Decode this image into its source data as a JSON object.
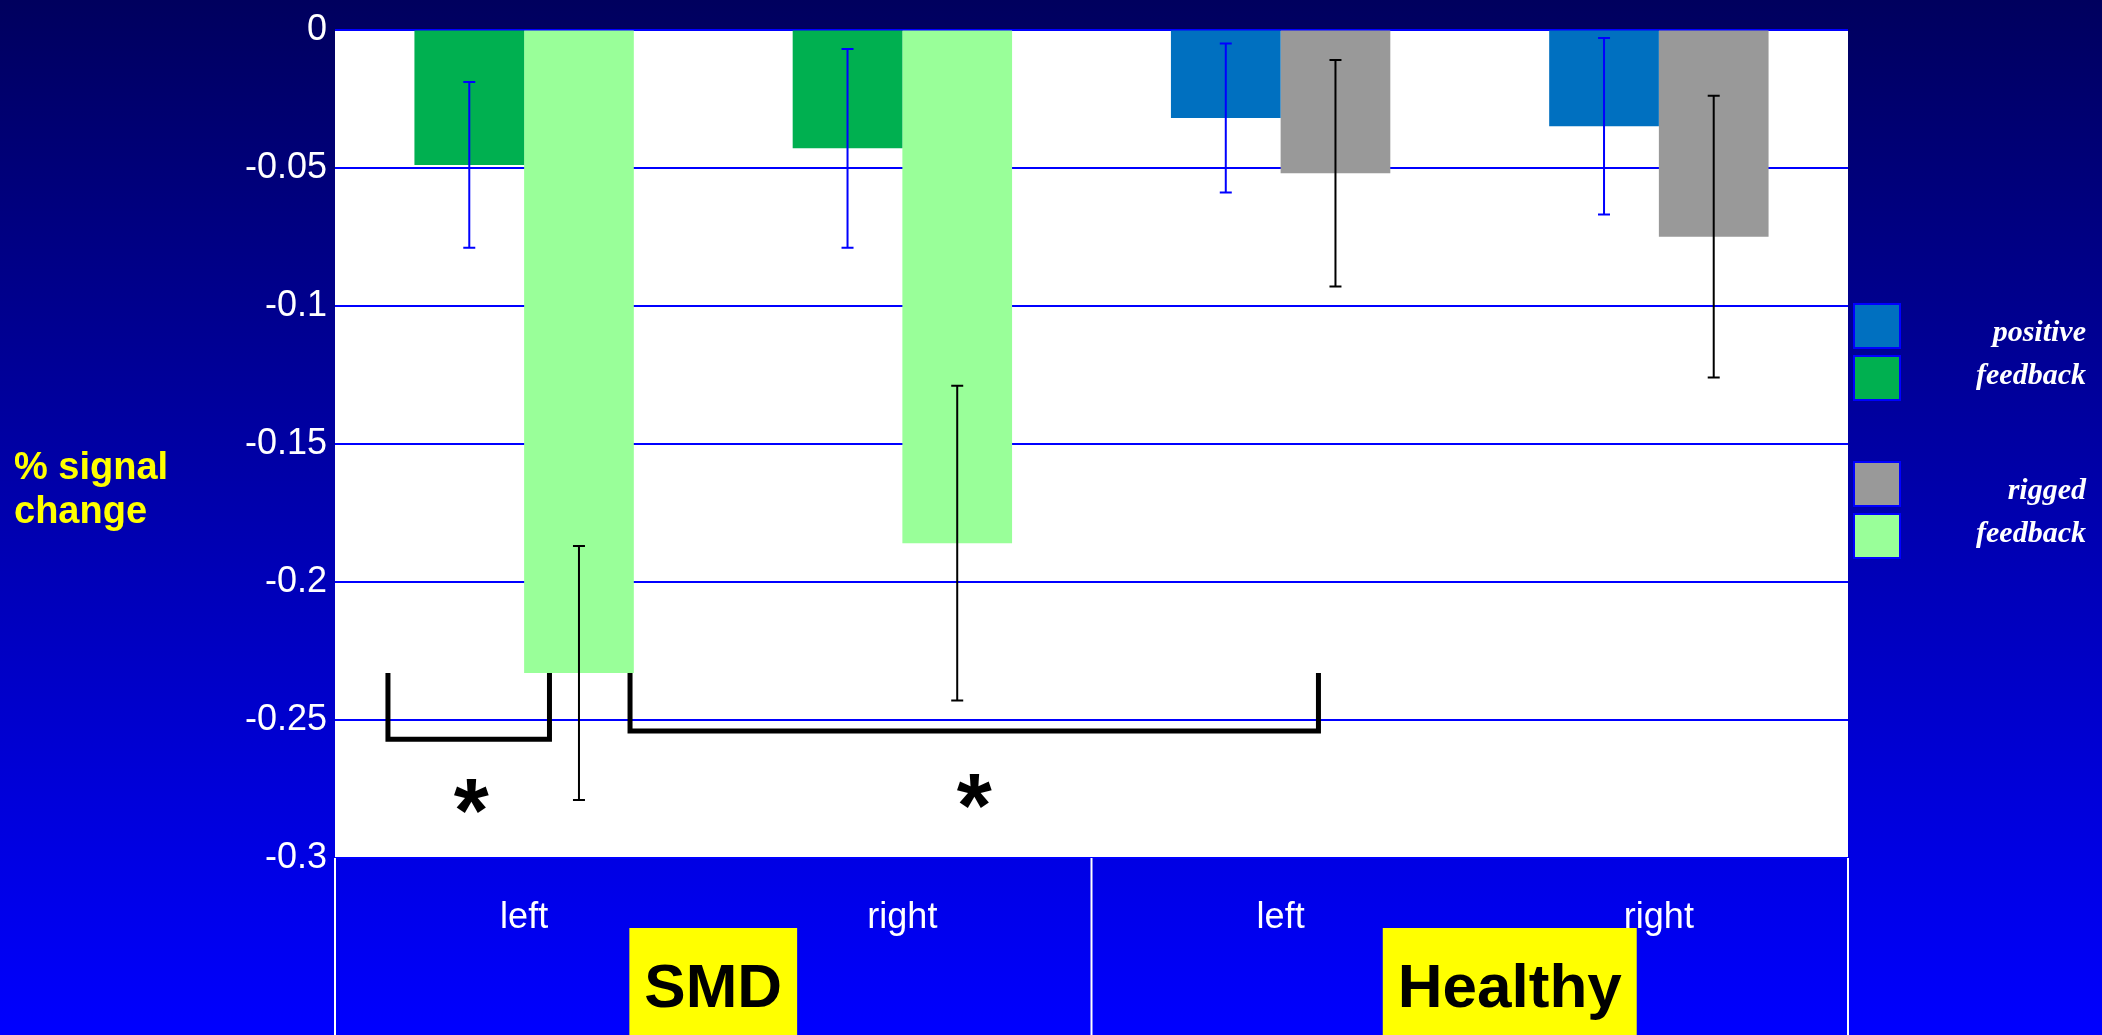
{
  "chart_data": {
    "type": "bar",
    "categories": [
      "left",
      "right",
      "left",
      "right"
    ],
    "ylabel": "% signal change",
    "ylim": [
      -0.3,
      0
    ],
    "yticks": [
      -0.3,
      -0.25,
      -0.2,
      -0.15,
      -0.1,
      -0.05,
      0
    ],
    "grid": "y",
    "legend": "right",
    "annotations": [
      "SMD",
      "Healthy",
      "*",
      "*"
    ],
    "series": [
      {
        "name": "positive feedback",
        "colors": [
          "#00b050",
          "#00b050",
          "#0070c0",
          "#0070c0"
        ],
        "values": [
          -0.049,
          -0.043,
          -0.032,
          -0.035
        ],
        "errors": [
          0.03,
          0.036,
          0.027,
          0.032
        ]
      },
      {
        "name": "rigged feedback",
        "colors": [
          "#99ff99",
          "#99ff99",
          "#999999",
          "#999999"
        ],
        "values": [
          -0.233,
          -0.186,
          -0.052,
          -0.075
        ],
        "errors": [
          0.046,
          0.057,
          0.041,
          0.051
        ]
      }
    ]
  }
}
